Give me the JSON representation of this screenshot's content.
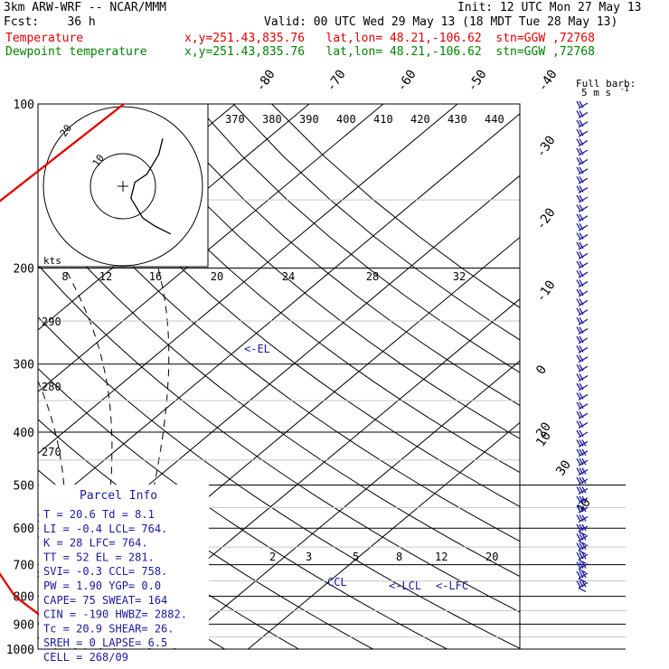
{
  "header": {
    "model": "3km ARW-WRF -- NCAR/MMM",
    "init": "Init: 12 UTC Mon 27 May 13",
    "fcst": "Fcst:    36 h",
    "valid": "Valid: 00 UTC Wed 29 May 13 (18 MDT Tue 28 May 13)",
    "temp_label": "Temperature",
    "temp_info": "x,y=251.43,835.76   lat,lon= 48.21,-106.62  stn=GGW ,72768",
    "dew_label": "Dewpoint temperature",
    "dew_info": "x,y=251.43,835.76   lat,lon= 48.21,-106.62  stn=GGW ,72768",
    "barb_title": "Full barb:",
    "barb_units": "5 m s",
    "barb_exp": "-1"
  },
  "colors": {
    "temperature": "#e00000",
    "dewpoint": "#008000",
    "wind": "#1a1a9c",
    "label": "#1a1a9c"
  },
  "chart_data": {
    "type": "skew-t log-p",
    "pressure_levels": [
      "100",
      "200",
      "300",
      "400",
      "500",
      "600",
      "700",
      "800",
      "900",
      "1000"
    ],
    "temperature_ticks": [
      "-80",
      "-70",
      "-60",
      "-50",
      "-40",
      "-30",
      "-20",
      "-10",
      "0",
      "10",
      "20",
      "30",
      "40"
    ],
    "theta_labels": [
      "370",
      "380",
      "390",
      "400",
      "410",
      "420",
      "430",
      "440",
      "290",
      "280",
      "270"
    ],
    "mixing_ratio_labels": [
      "2",
      "3",
      "5",
      "8",
      "12",
      "20"
    ],
    "series": [
      {
        "name": "Temperature",
        "color": "#e00000",
        "points": [
          [
            100,
            -55
          ],
          [
            150,
            -56
          ],
          [
            200,
            -58
          ],
          [
            250,
            -53
          ],
          [
            300,
            -44
          ],
          [
            400,
            -26
          ],
          [
            500,
            -13
          ],
          [
            600,
            -5
          ],
          [
            700,
            2
          ],
          [
            800,
            10
          ],
          [
            900,
            19.5
          ]
        ]
      },
      {
        "name": "Dewpoint temperature",
        "color": "#008000",
        "points": [
          [
            100,
            -75
          ],
          [
            150,
            -73
          ],
          [
            200,
            -70
          ],
          [
            250,
            -63
          ],
          [
            300,
            -58
          ],
          [
            400,
            -45
          ],
          [
            450,
            -38
          ],
          [
            500,
            -37
          ],
          [
            550,
            -40
          ],
          [
            600,
            -24
          ],
          [
            700,
            -12
          ],
          [
            800,
            1
          ],
          [
            900,
            -5
          ]
        ]
      }
    ],
    "annotations": [
      "<-EL",
      "CCL",
      "<-LCL",
      "<-LFC"
    ],
    "wind_units": "5 m s-1 per full barb"
  },
  "hodograph": {
    "units": "kts",
    "ring_labels": [
      "10",
      "20"
    ],
    "speed_ticks": [
      "8",
      "12",
      "16",
      "20",
      "24",
      "28",
      "32"
    ],
    "points": [
      [
        12,
        -12
      ],
      [
        8,
        -10
      ],
      [
        5,
        -8
      ],
      [
        2,
        -3
      ],
      [
        3,
        1
      ],
      [
        6,
        3
      ],
      [
        9,
        8
      ],
      [
        10,
        12
      ]
    ]
  },
  "parcel_info": {
    "title": "Parcel Info",
    "rows": [
      "T  =    20.6  Td =   8.1",
      "LI =    -0.4  LCL=  764.",
      "K  =      28  LFC=  764.",
      "TT =      52  EL =  281.",
      "SVI=    -0.3  CCL=  758.",
      "PW =    1.90  YGP=   0.0",
      "CAPE=     75  SWEAT=  164",
      "CIN =   -190  HWBZ= 2882.",
      "Tc =    20.9  SHEAR=  26.",
      "SREH =     0  LAPSE=  6.5",
      "CELL = 268/09"
    ]
  }
}
